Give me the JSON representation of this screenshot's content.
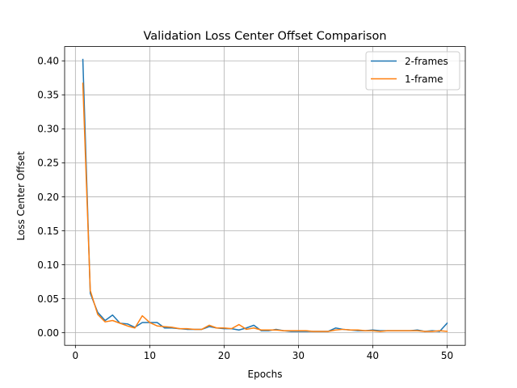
{
  "chart_data": {
    "type": "line",
    "title": "Validation Loss Center Offset Comparison",
    "xlabel": "Epochs",
    "ylabel": "Loss Center Offset",
    "xlim": [
      -1.45,
      52.45
    ],
    "ylim": [
      -0.0185,
      0.421
    ],
    "xticks": [
      0,
      10,
      20,
      30,
      40,
      50
    ],
    "xtick_labels": [
      "0",
      "10",
      "20",
      "30",
      "40",
      "50"
    ],
    "yticks": [
      0.0,
      0.05,
      0.1,
      0.15,
      0.2,
      0.25,
      0.3,
      0.35,
      0.4
    ],
    "ytick_labels": [
      "0.00",
      "0.05",
      "0.10",
      "0.15",
      "0.20",
      "0.25",
      "0.30",
      "0.35",
      "0.40"
    ],
    "grid": true,
    "legend_position": "top-right",
    "x": [
      1,
      2,
      3,
      4,
      5,
      6,
      7,
      8,
      9,
      10,
      11,
      12,
      13,
      14,
      15,
      16,
      17,
      18,
      19,
      20,
      21,
      22,
      23,
      24,
      25,
      26,
      27,
      28,
      29,
      30,
      31,
      32,
      33,
      34,
      35,
      36,
      37,
      38,
      39,
      40,
      41,
      42,
      43,
      44,
      45,
      46,
      47,
      48,
      49,
      50
    ],
    "series": [
      {
        "name": "2-frames",
        "color": "#1f77b4",
        "values": [
          0.402,
          0.058,
          0.03,
          0.018,
          0.026,
          0.014,
          0.013,
          0.008,
          0.015,
          0.015,
          0.015,
          0.007,
          0.007,
          0.006,
          0.005,
          0.005,
          0.005,
          0.009,
          0.007,
          0.006,
          0.006,
          0.004,
          0.007,
          0.011,
          0.003,
          0.003,
          0.005,
          0.003,
          0.002,
          0.002,
          0.002,
          0.002,
          0.002,
          0.002,
          0.007,
          0.005,
          0.004,
          0.003,
          0.003,
          0.004,
          0.003,
          0.003,
          0.003,
          0.003,
          0.003,
          0.004,
          0.002,
          0.003,
          0.002,
          0.014
        ]
      },
      {
        "name": "1-frame",
        "color": "#ff7f0e",
        "values": [
          0.367,
          0.062,
          0.027,
          0.016,
          0.018,
          0.014,
          0.01,
          0.007,
          0.025,
          0.015,
          0.01,
          0.009,
          0.008,
          0.006,
          0.006,
          0.005,
          0.005,
          0.011,
          0.007,
          0.007,
          0.006,
          0.012,
          0.005,
          0.007,
          0.004,
          0.004,
          0.004,
          0.003,
          0.003,
          0.003,
          0.003,
          0.002,
          0.002,
          0.002,
          0.004,
          0.005,
          0.004,
          0.004,
          0.003,
          0.003,
          0.002,
          0.003,
          0.003,
          0.003,
          0.003,
          0.003,
          0.002,
          0.002,
          0.003,
          0.002
        ]
      }
    ]
  }
}
